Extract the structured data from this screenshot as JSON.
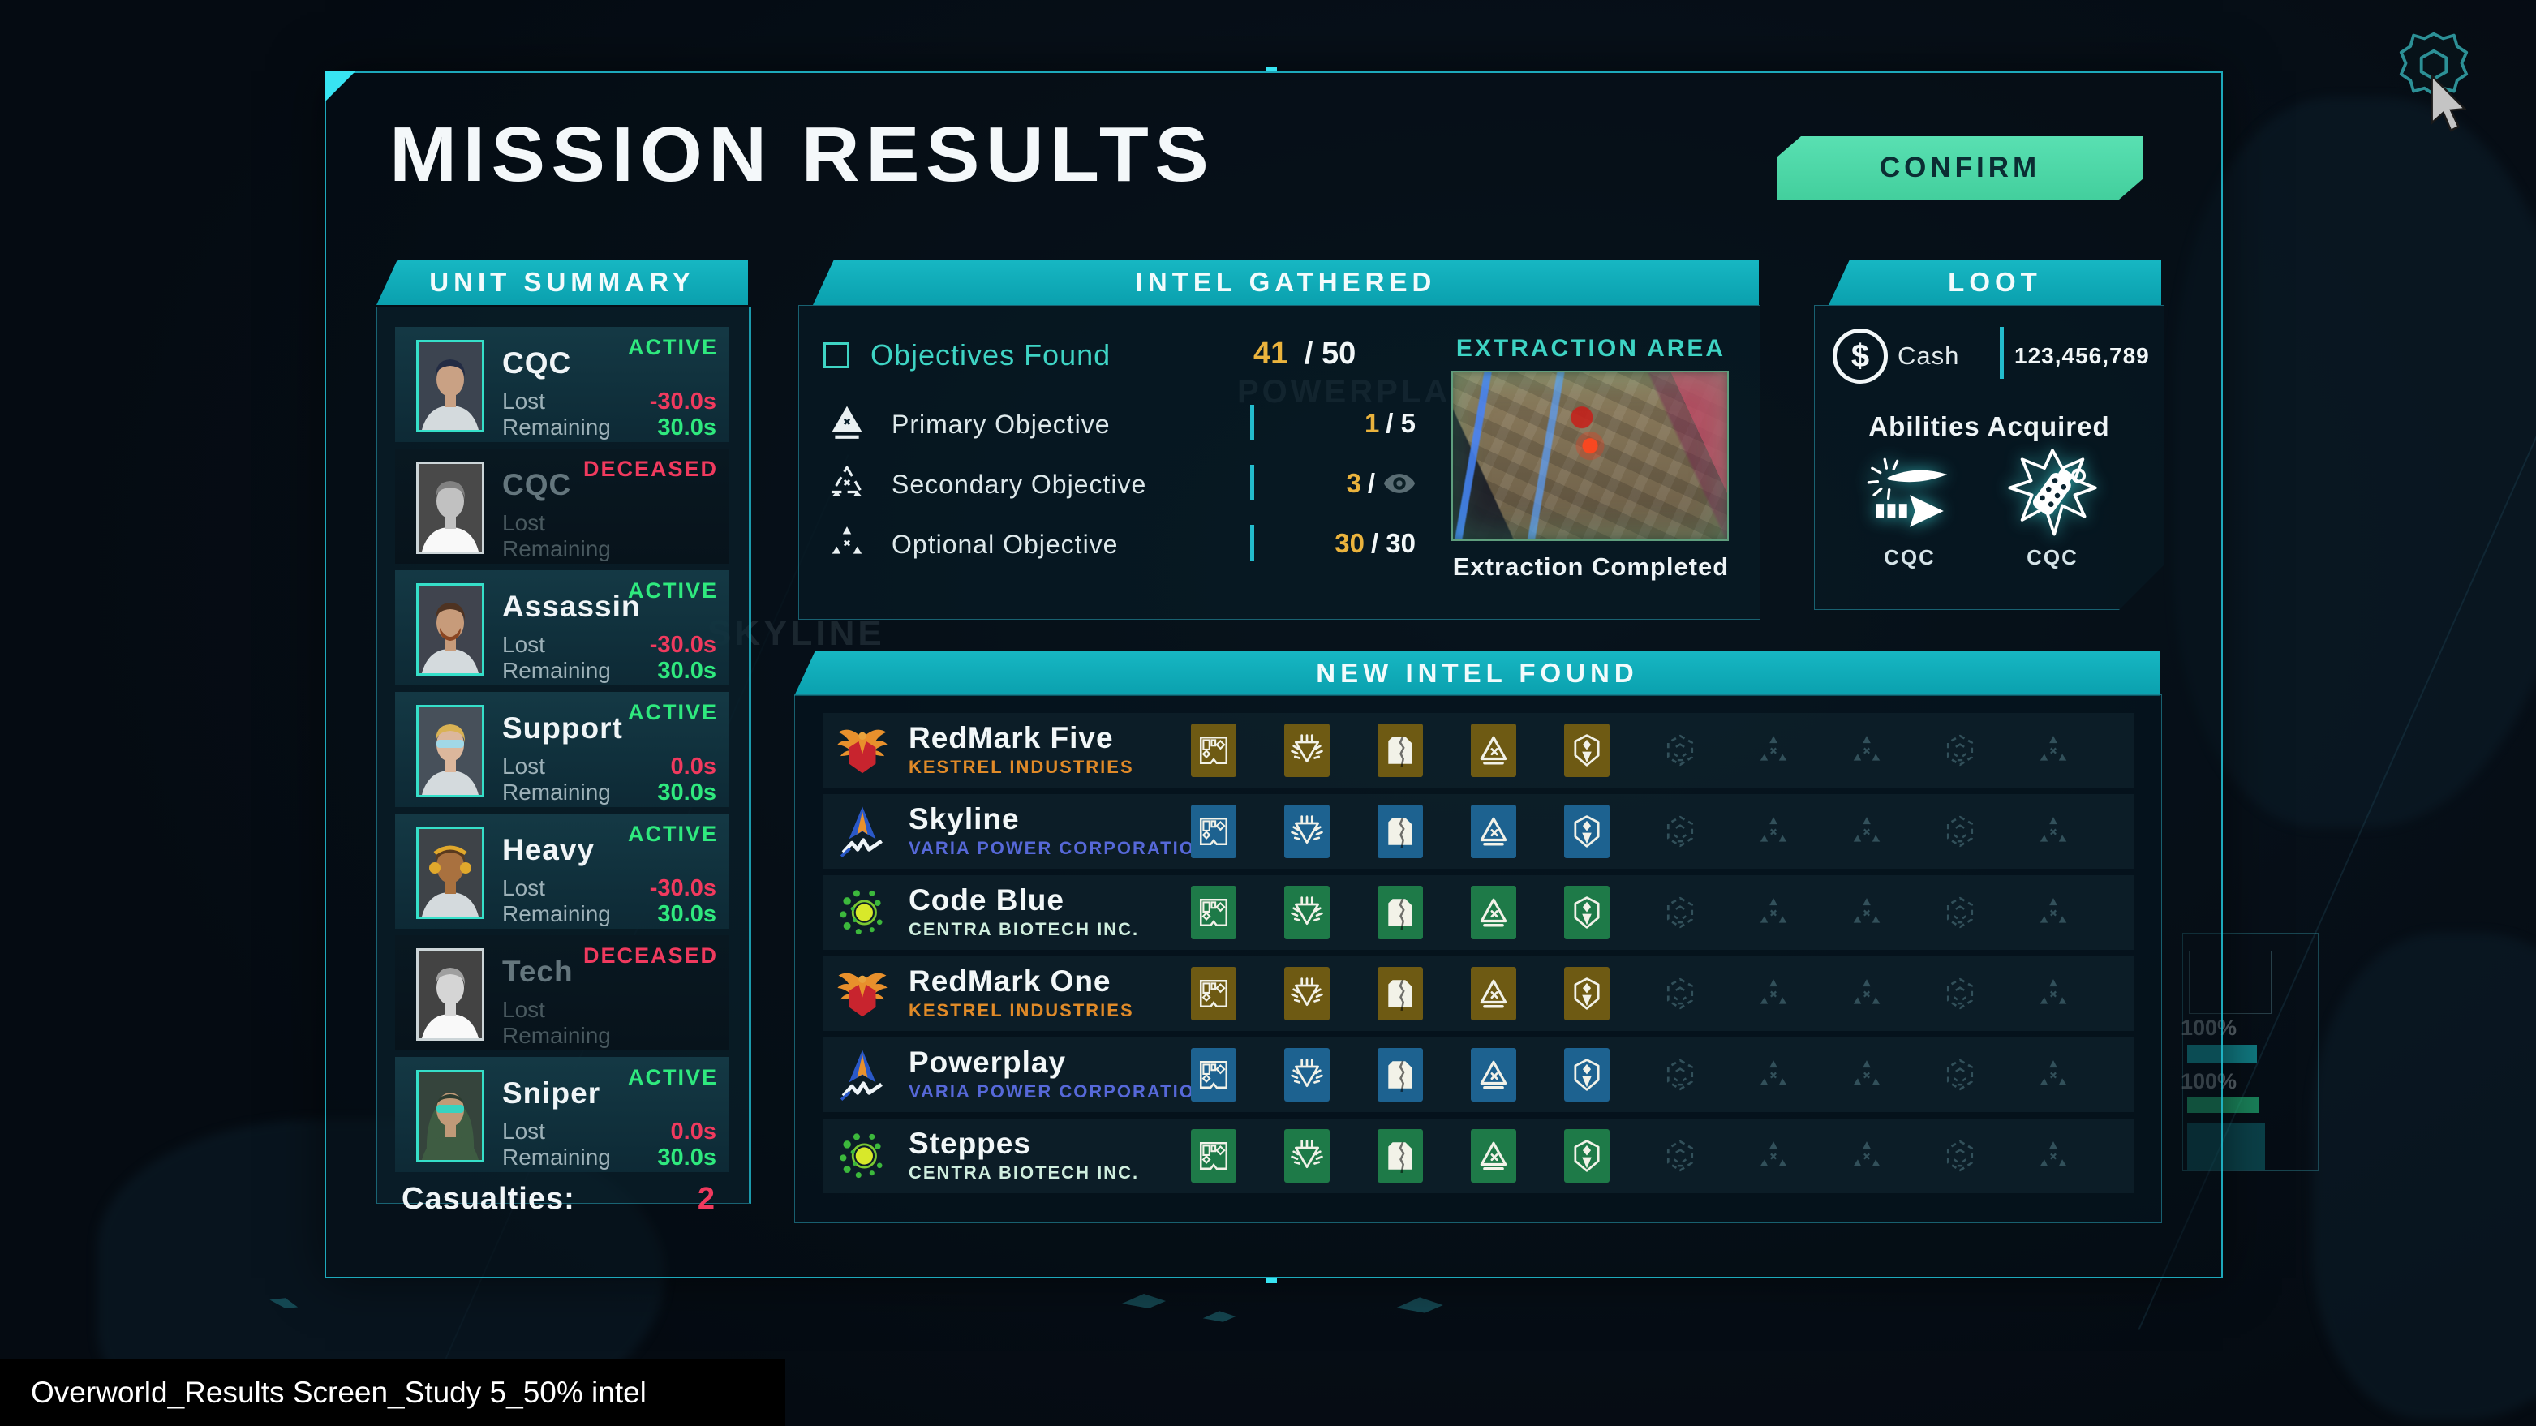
{
  "screen": {
    "title": "MISSION RESULTS",
    "confirm_label": "CONFIRM"
  },
  "colors": {
    "accent_teal": "#0fa8b4",
    "confirm_green": "#4dd6a7",
    "status_active": "#2fe97e",
    "status_deceased": "#f03a5e",
    "value_lost_red": "#f03a5e",
    "value_remaining_green": "#2fe97e",
    "highlight_gold": "#eab33d",
    "faction_gold": "#6e5a13",
    "faction_blue": "#1d6290",
    "faction_green": "#1e7a48"
  },
  "unit_summary": {
    "header": "UNIT SUMMARY",
    "lost_label": "Lost",
    "remaining_label": "Remaining",
    "casualties_label": "Casualties:",
    "casualties_value": "2",
    "units": [
      {
        "name": "CQC",
        "status": "ACTIVE",
        "lost": "-30.0s",
        "remaining": "30.0s",
        "portrait": "male-dark-hair"
      },
      {
        "name": "CQC",
        "status": "DECEASED",
        "lost": "",
        "remaining": "",
        "portrait": "male-grayscale"
      },
      {
        "name": "Assassin",
        "status": "ACTIVE",
        "lost": "-30.0s",
        "remaining": "30.0s",
        "portrait": "male-beard"
      },
      {
        "name": "Support",
        "status": "ACTIVE",
        "lost": "0.0s",
        "remaining": "30.0s",
        "portrait": "female-blonde-glasses"
      },
      {
        "name": "Heavy",
        "status": "ACTIVE",
        "lost": "-30.0s",
        "remaining": "30.0s",
        "portrait": "female-headset"
      },
      {
        "name": "Tech",
        "status": "DECEASED",
        "lost": "",
        "remaining": "",
        "portrait": "female-grayscale"
      },
      {
        "name": "Sniper",
        "status": "ACTIVE",
        "lost": "0.0s",
        "remaining": "30.0s",
        "portrait": "hooded-goggles"
      }
    ]
  },
  "intel_gathered": {
    "header": "INTEL GATHERED",
    "objectives_found_label": "Objectives Found",
    "objectives_found_value": "41",
    "objectives_found_total": "/ 50",
    "objectives": [
      {
        "label": "Primary Objective",
        "value": "1",
        "total": "/ 5",
        "icon": "triangle-solid",
        "hidden_count": false
      },
      {
        "label": "Secondary Objective",
        "value": "3",
        "total": "/",
        "icon": "triangle-fragment",
        "hidden_count": true
      },
      {
        "label": "Optional Objective",
        "value": "30",
        "total": "/ 30",
        "icon": "triangle-shattered",
        "hidden_count": false
      }
    ],
    "extraction": {
      "header": "EXTRACTION AREA",
      "caption": "Extraction Completed"
    }
  },
  "loot": {
    "header": "LOOT",
    "cash_label": "Cash",
    "cash_value": "123,456,789",
    "abilities_header": "Abilities Acquired",
    "abilities": [
      {
        "label": "CQC",
        "icon": "piercing-shot"
      },
      {
        "label": "CQC",
        "icon": "grenade-blast"
      }
    ]
  },
  "new_intel": {
    "header": "NEW INTEL FOUND",
    "factions": [
      {
        "name": "RedMark Five",
        "company": "KESTREL INDUSTRIES",
        "theme": "gold",
        "slots_found": 5,
        "slots_total": 10
      },
      {
        "name": "Skyline",
        "company": "VARIA POWER CORPORATION",
        "theme": "blue",
        "slots_found": 5,
        "slots_total": 10
      },
      {
        "name": "Code Blue",
        "company": "CENTRA BIOTECH INC.",
        "theme": "green",
        "slots_found": 5,
        "slots_total": 10
      },
      {
        "name": "RedMark One",
        "company": "KESTREL INDUSTRIES",
        "theme": "gold",
        "slots_found": 5,
        "slots_total": 10
      },
      {
        "name": "Powerplay",
        "company": "VARIA POWER CORPORATION",
        "theme": "blue",
        "slots_found": 5,
        "slots_total": 10
      },
      {
        "name": "Steppes",
        "company": "CENTRA BIOTECH INC.",
        "theme": "green",
        "slots_found": 5,
        "slots_total": 10
      }
    ]
  },
  "background": {
    "watermarks": [
      "SKYLINE",
      "POWERPLA"
    ],
    "progress_labels": [
      "100%",
      "100%"
    ]
  },
  "footer": {
    "label": "Overworld_Results Screen_Study 5_50% intel"
  }
}
